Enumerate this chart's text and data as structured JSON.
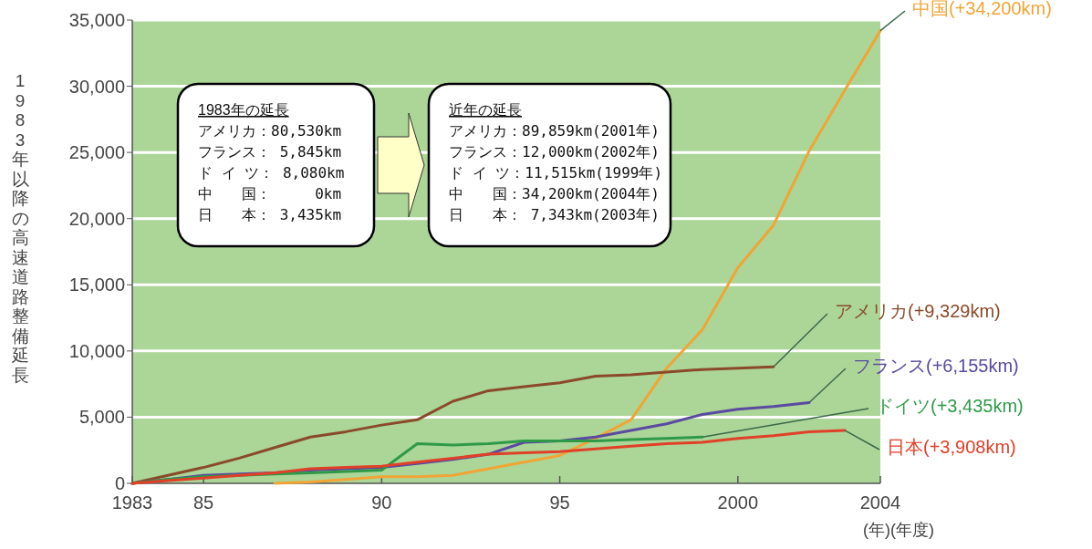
{
  "chart_data": {
    "type": "line",
    "ylabel": "1983年以降の高速道路整備延長",
    "xlabel": "(年)(年度)",
    "xlim": [
      1983,
      2004
    ],
    "ylim": [
      0,
      35000
    ],
    "xticks": [
      1983,
      {
        "value": 1985,
        "label": "85"
      },
      {
        "value": 1990,
        "label": "90"
      },
      {
        "value": 1995,
        "label": "95"
      },
      2000,
      2004
    ],
    "yticks": [
      0,
      {
        "value": 5000,
        "label": "5,000"
      },
      {
        "value": 10000,
        "label": "10,000"
      },
      {
        "value": 15000,
        "label": "15,000"
      },
      {
        "value": 20000,
        "label": "20,000"
      },
      {
        "value": 25000,
        "label": "25,000"
      },
      {
        "value": 30000,
        "label": "30,000"
      },
      {
        "value": 35000,
        "label": "35,000"
      }
    ],
    "grid": "y",
    "legend": false,
    "marker": "none",
    "line_style": "solid",
    "x": [
      1983,
      1984,
      1985,
      1986,
      1987,
      1988,
      1989,
      1990,
      1991,
      1992,
      1993,
      1994,
      1995,
      1996,
      1997,
      1998,
      1999,
      2000,
      2001,
      2002,
      2003,
      2004
    ],
    "series": [
      {
        "name": "中国(+34,200km)",
        "color": "#f0a535",
        "values": [
          null,
          null,
          null,
          null,
          0,
          100,
          300,
          500,
          500,
          600,
          1100,
          1600,
          2100,
          3400,
          4800,
          8700,
          11600,
          16300,
          19500,
          25100,
          29700,
          34200
        ]
      },
      {
        "name": "アメリカ(+9,329km)",
        "color": "#8a4a2a",
        "values": [
          0,
          600,
          1200,
          1900,
          2700,
          3500,
          3900,
          4400,
          4800,
          6200,
          7000,
          7300,
          7600,
          8100,
          8200,
          8400,
          8600,
          8700,
          8800,
          null,
          null,
          null
        ]
      },
      {
        "name": "フランス(+6,155km)",
        "color": "#5a4aa0",
        "values": [
          0,
          300,
          600,
          700,
          800,
          1000,
          1100,
          1200,
          1500,
          1800,
          2200,
          3100,
          3200,
          3500,
          4000,
          4500,
          5200,
          5600,
          5800,
          6100,
          null,
          null
        ]
      },
      {
        "name": "ドイツ(+3,435km)",
        "color": "#2e9a48",
        "values": [
          0,
          300,
          500,
          600,
          700,
          800,
          900,
          1000,
          3000,
          2900,
          3000,
          3200,
          3200,
          3200,
          3300,
          3400,
          3500,
          null,
          null,
          null,
          null,
          null
        ]
      },
      {
        "name": "日本(+3,908km)",
        "color": "#e04028",
        "values": [
          0,
          200,
          400,
          600,
          800,
          1100,
          1200,
          1300,
          1600,
          1900,
          2200,
          2300,
          2400,
          2600,
          2800,
          3000,
          3100,
          3400,
          3600,
          3900,
          4000,
          null
        ]
      }
    ],
    "annotations": [
      "1983年の延長",
      "アメリカ：80,530km",
      "フランス： 5,845km",
      "ド イ ツ： 8,080km",
      "中　　国：     0km",
      "日　　本： 3,435km",
      "近年の延長",
      "アメリカ：89,859km(2001年)",
      "フランス：12,000km(2002年)",
      "ド イ ツ：11,515km(1999年)",
      "中　　国：34,200km(2004年)",
      "日　　本： 7,343km(2003年)"
    ]
  }
}
